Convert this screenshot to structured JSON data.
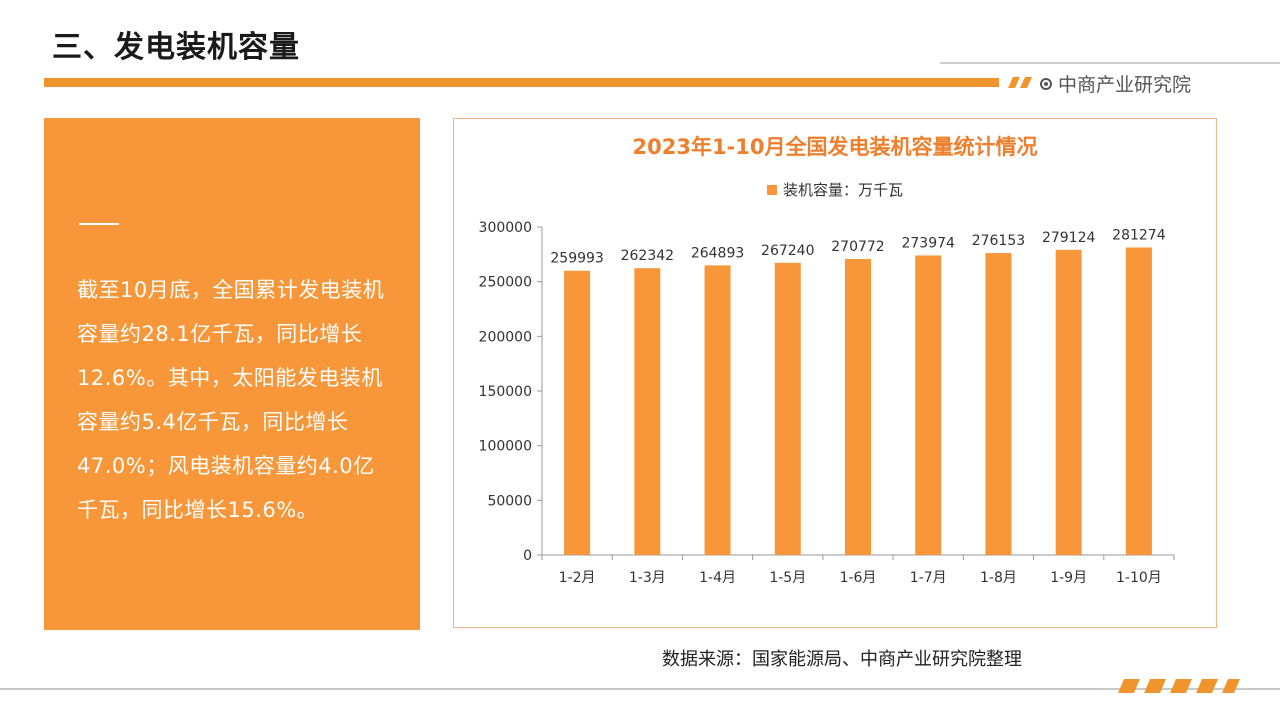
{
  "page": {
    "title": "三、发电装机容量",
    "brand": "中商产业研究院",
    "source": "数据来源：国家能源局、中商产业研究院整理",
    "accent_color": "#f0952e",
    "panel_color": "#f7973a"
  },
  "side_panel": {
    "text": "截至10月底，全国累计发电装机容量约28.1亿千瓦，同比增长12.6%。其中，太阳能发电装机容量约5.4亿千瓦，同比增长47.0%；风电装机容量约4.0亿千瓦，同比增长15.6%。"
  },
  "chart_data": {
    "type": "bar",
    "title": "2023年1-10月全国发电装机容量统计情况",
    "categories": [
      "1-2月",
      "1-3月",
      "1-4月",
      "1-5月",
      "1-6月",
      "1-7月",
      "1-8月",
      "1-9月",
      "1-10月"
    ],
    "series": [
      {
        "name": "装机容量：万千瓦",
        "values": [
          259993,
          262342,
          264893,
          267240,
          270772,
          273974,
          276153,
          279124,
          281274
        ],
        "color": "#f7973a"
      }
    ],
    "ylim": [
      0,
      300000
    ],
    "yticks": [
      0,
      50000,
      100000,
      150000,
      200000,
      250000,
      300000
    ],
    "legend_position": "top-center",
    "grid": false
  }
}
